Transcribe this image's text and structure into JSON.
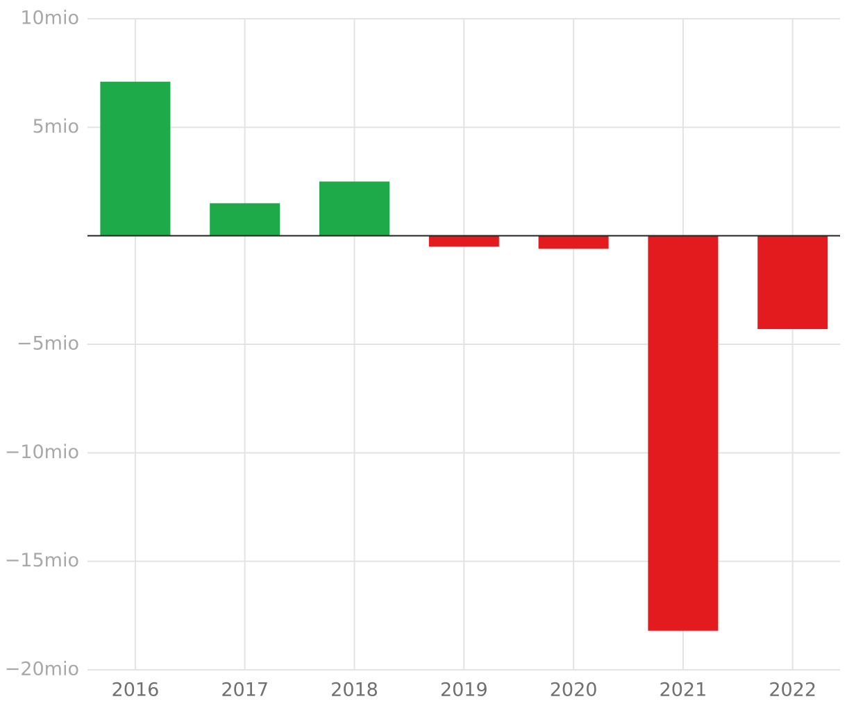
{
  "chart_data": {
    "type": "bar",
    "categories": [
      "2016",
      "2017",
      "2018",
      "2019",
      "2020",
      "2021",
      "2022"
    ],
    "values": [
      7.1,
      1.5,
      2.5,
      -0.5,
      -0.6,
      -18.2,
      -4.3
    ],
    "positive_color": "#1eaa48",
    "negative_color": "#e31b1e",
    "ylim": [
      -20,
      10
    ],
    "yticks": [
      {
        "value": -20,
        "label": "−20mio"
      },
      {
        "value": -15,
        "label": "−15mio"
      },
      {
        "value": -10,
        "label": "−10mio"
      },
      {
        "value": -5,
        "label": "−5mio"
      },
      {
        "value": 5,
        "label": "5mio"
      },
      {
        "value": 10,
        "label": "10mio"
      }
    ],
    "grid": true
  }
}
